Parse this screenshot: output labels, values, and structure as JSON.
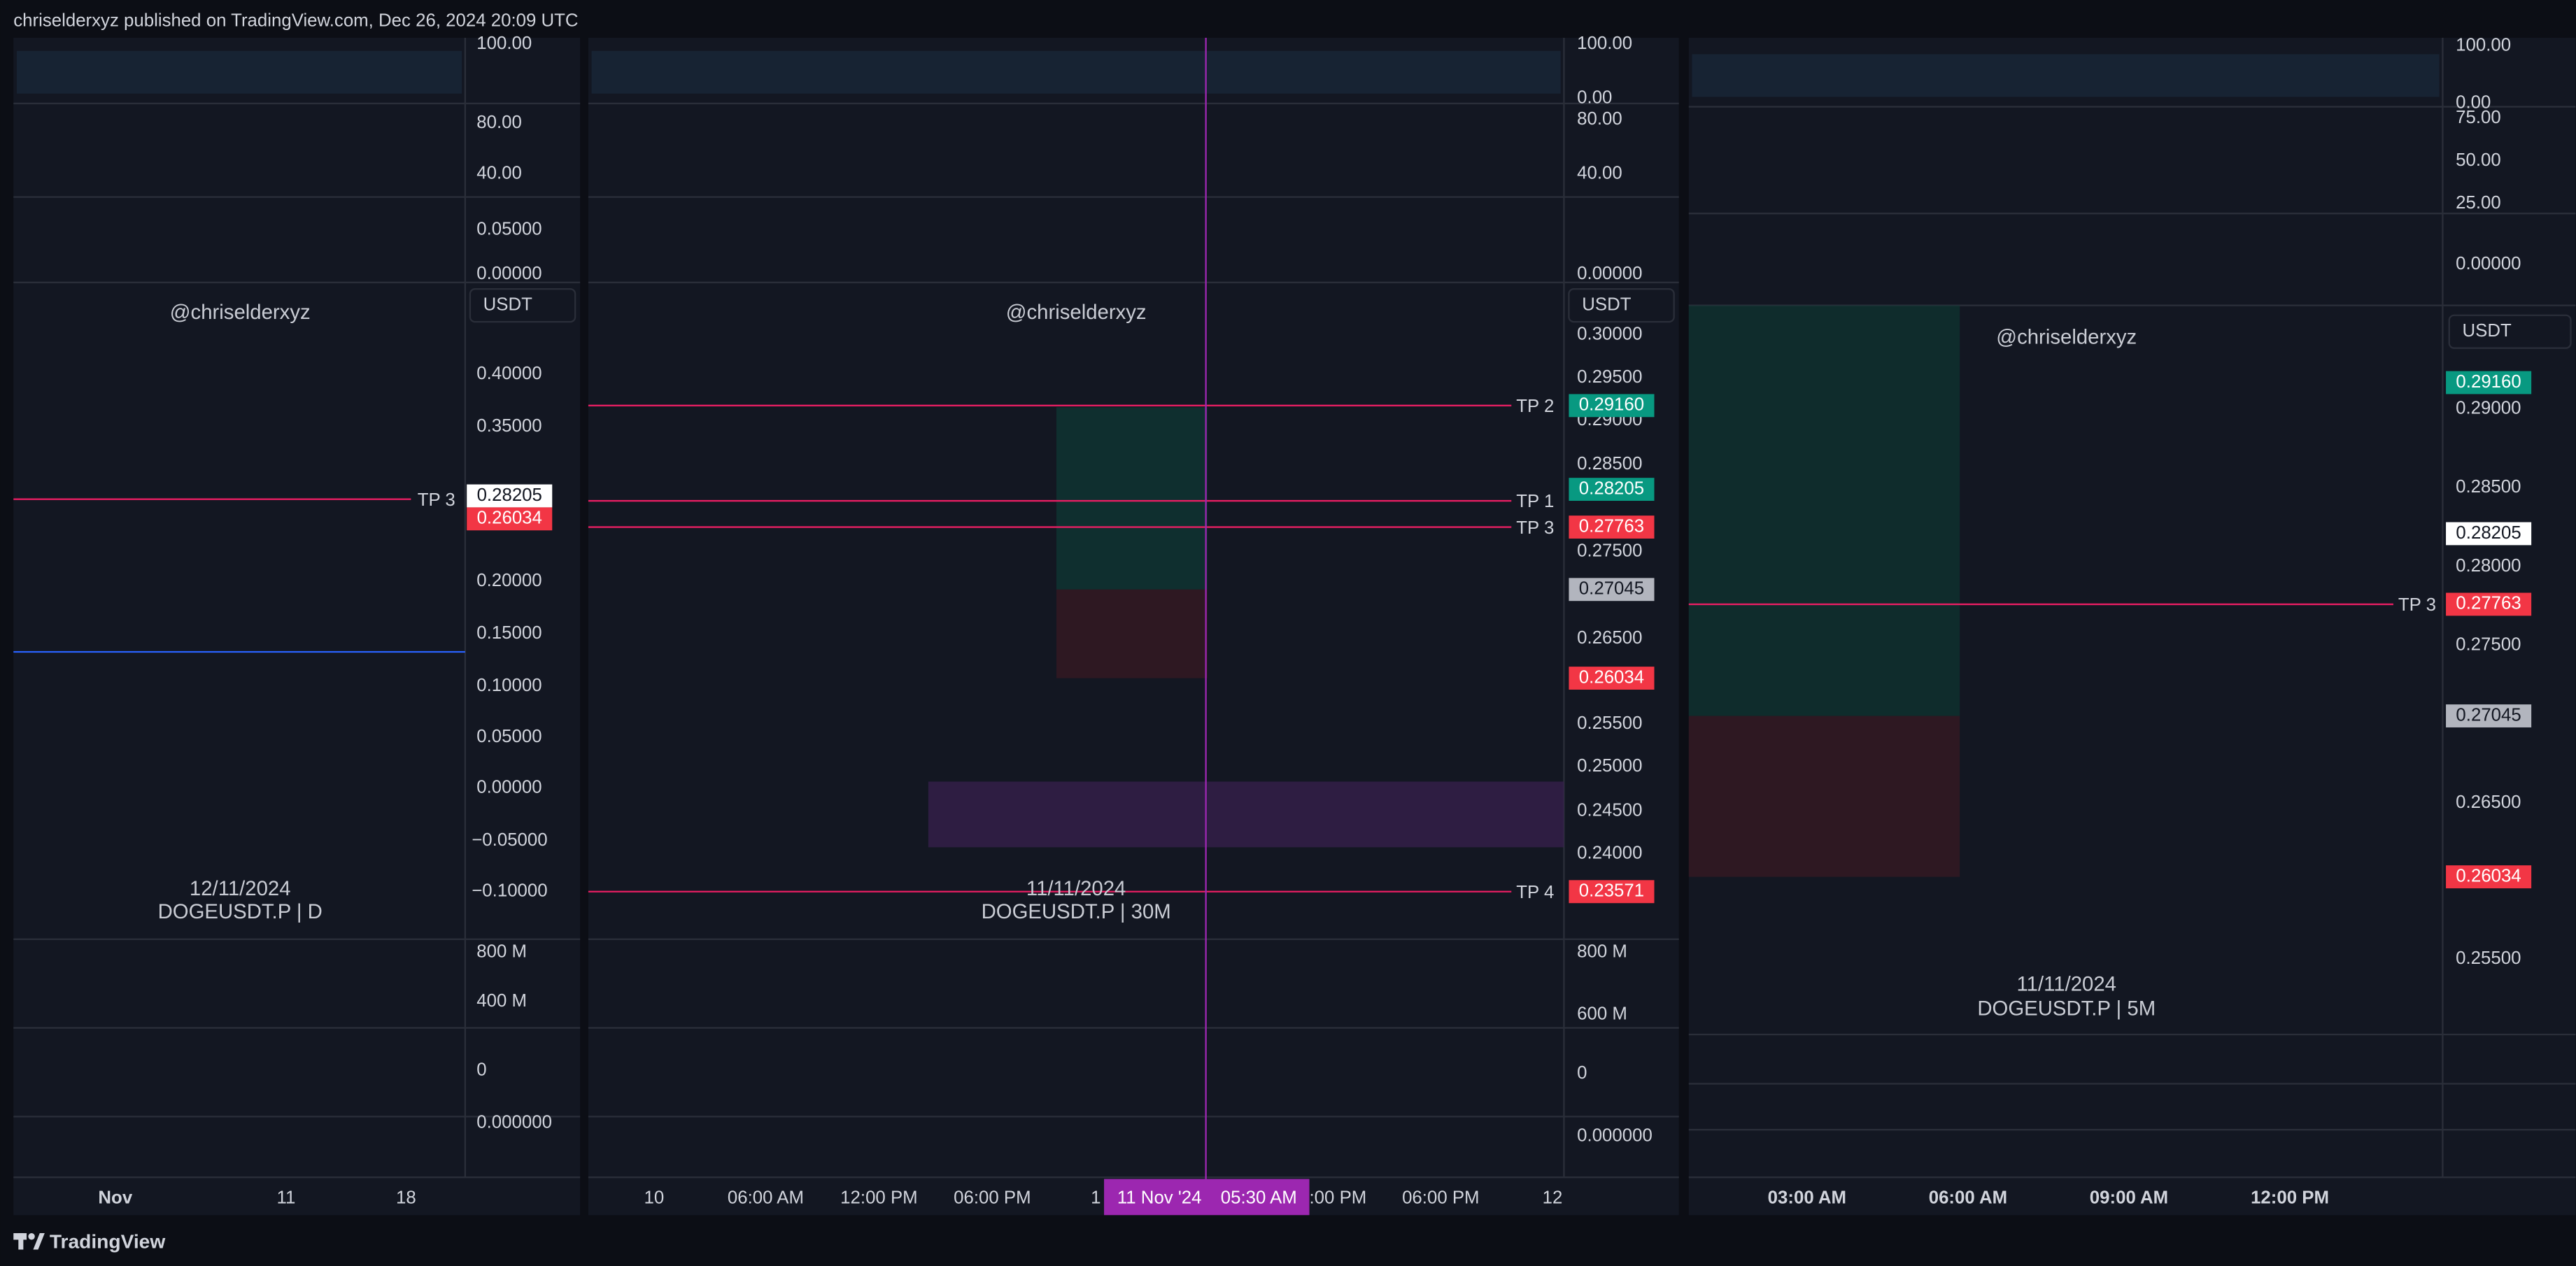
{
  "header": {
    "title": "chriselderxyz published on TradingView.com, Dec 26, 2024 20:09 UTC"
  },
  "footer": {
    "brand": "TradingView"
  },
  "panels": [
    {
      "watermark": "@chriselderxyz",
      "currency": "USDT",
      "date": "12/11/2024",
      "symbol": "DOGEUSDT.P | D",
      "indicator_axis": [
        "100.00",
        "80.00",
        "40.00",
        "0.05000",
        "0.00000"
      ],
      "price_axis": [
        "0.40000",
        "0.35000",
        "0.20000",
        "0.15000",
        "0.10000",
        "0.05000",
        "0.00000",
        "−0.05000",
        "−0.10000"
      ],
      "price_tags": [
        {
          "text": "0.28205",
          "color": "#ffffff",
          "tp": "TP 3"
        },
        {
          "text": "0.26034",
          "color": "#f23645"
        }
      ],
      "volume_axis": [
        "800 M",
        "400 M",
        "0",
        "0.000000"
      ],
      "time_axis": [
        "Nov",
        "11",
        "18"
      ]
    },
    {
      "watermark": "@chriselderxyz",
      "currency": "USDT",
      "date": "11/11/2024",
      "symbol": "DOGEUSDT.P | 30M",
      "indicator_axis": [
        "100.00",
        "0.00",
        "80.00",
        "40.00",
        "0.00000"
      ],
      "price_axis": [
        "0.30000",
        "0.29500",
        "0.29000",
        "0.28500",
        "0.27500",
        "0.26500",
        "0.25500",
        "0.25000",
        "0.24500",
        "0.24000"
      ],
      "price_tags": [
        {
          "text": "0.29160",
          "color": "#089981",
          "tp": "TP 2"
        },
        {
          "text": "0.28205",
          "color": "#089981",
          "tp": "TP 1"
        },
        {
          "text": "0.27763",
          "color": "#f23645",
          "tp": "TP 3"
        },
        {
          "text": "0.27045",
          "color": "#b2b5be"
        },
        {
          "text": "0.26034",
          "color": "#f23645"
        },
        {
          "text": "0.23571",
          "color": "#f23645",
          "tp": "TP 4"
        }
      ],
      "volume_axis": [
        "800 M",
        "600 M",
        "0",
        "0.000000"
      ],
      "time_axis": [
        "10",
        "06:00 AM",
        "12:00 PM",
        "06:00 PM",
        "1",
        ":00 PM",
        "06:00 PM",
        "12"
      ],
      "crosshair": {
        "date": "11 Nov '24",
        "time": "05:30 AM"
      }
    },
    {
      "watermark": "@chriselderxyz",
      "currency": "USDT",
      "date": "11/11/2024",
      "symbol": "DOGEUSDT.P | 5M",
      "indicator_axis": [
        "100.00",
        "0.00",
        "75.00",
        "50.00",
        "25.00",
        "0.00000"
      ],
      "price_axis": [
        "0.29000",
        "0.28500",
        "0.28000",
        "0.27500",
        "0.26500",
        "0.25500"
      ],
      "price_tags": [
        {
          "text": "0.29160",
          "color": "#089981"
        },
        {
          "text": "0.28205",
          "color": "#ffffff"
        },
        {
          "text": "0.27763",
          "color": "#f23645",
          "tp": "TP 3"
        },
        {
          "text": "0.27045",
          "color": "#b2b5be"
        },
        {
          "text": "0.26034",
          "color": "#f23645"
        }
      ],
      "time_axis": [
        "03:00 AM",
        "06:00 AM",
        "09:00 AM",
        "12:00 PM"
      ]
    }
  ]
}
